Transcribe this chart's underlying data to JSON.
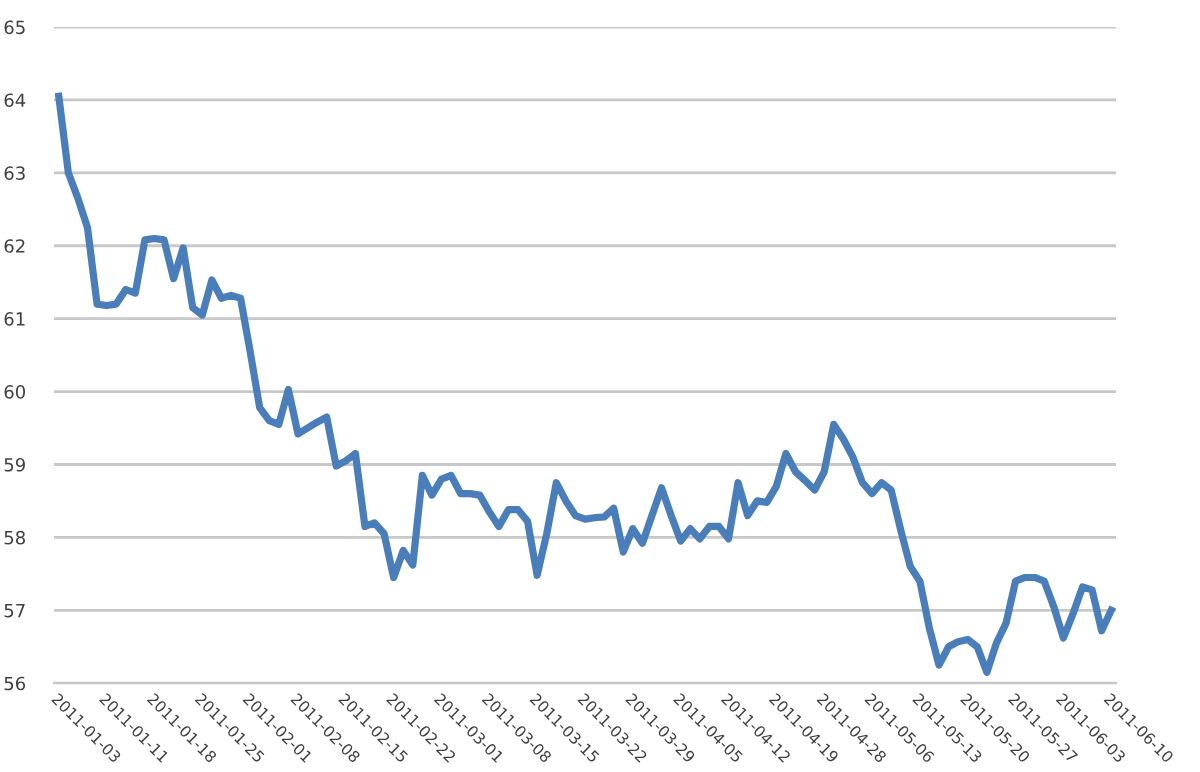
{
  "chart_data": {
    "type": "line",
    "categories": [
      "2011-01-03",
      null,
      null,
      null,
      null,
      "2011-01-11",
      null,
      null,
      null,
      null,
      "2011-01-18",
      null,
      null,
      null,
      null,
      "2011-01-25",
      null,
      null,
      null,
      null,
      "2011-02-01",
      null,
      null,
      null,
      null,
      "2011-02-08",
      null,
      null,
      null,
      null,
      "2011-02-15",
      null,
      null,
      null,
      null,
      "2011-02-22",
      null,
      null,
      null,
      null,
      "2011-03-01",
      null,
      null,
      null,
      null,
      "2011-03-08",
      null,
      null,
      null,
      null,
      "2011-03-15",
      null,
      null,
      null,
      null,
      "2011-03-22",
      null,
      null,
      null,
      null,
      "2011-03-29",
      null,
      null,
      null,
      null,
      "2011-04-05",
      null,
      null,
      null,
      null,
      "2011-04-12",
      null,
      null,
      null,
      null,
      "2011-04-19",
      null,
      null,
      null,
      null,
      "2011-04-28",
      null,
      null,
      null,
      null,
      "2011-05-06",
      null,
      null,
      null,
      null,
      "2011-05-13",
      null,
      null,
      null,
      null,
      "2011-05-20",
      null,
      null,
      null,
      null,
      "2011-05-27",
      null,
      null,
      null,
      null,
      "2011-06-03",
      null,
      null,
      null,
      null,
      "2011-06-10"
    ],
    "series": [
      {
        "color": "#4a7ebb",
        "values": [
          64.05,
          63.0,
          62.65,
          62.25,
          61.2,
          61.18,
          61.2,
          61.4,
          61.35,
          62.08,
          62.1,
          62.08,
          61.55,
          61.97,
          61.15,
          61.05,
          61.53,
          61.28,
          61.32,
          61.28,
          60.55,
          59.78,
          59.6,
          59.55,
          60.03,
          59.42,
          59.5,
          59.58,
          59.65,
          58.98,
          59.05,
          59.15,
          58.15,
          58.2,
          58.05,
          57.45,
          57.82,
          57.62,
          58.85,
          58.58,
          58.8,
          58.85,
          58.6,
          58.6,
          58.58,
          58.35,
          58.15,
          58.38,
          58.38,
          58.22,
          57.48,
          58.05,
          58.75,
          58.5,
          58.3,
          58.25,
          58.27,
          58.28,
          58.4,
          57.8,
          58.12,
          57.92,
          58.3,
          58.68,
          58.3,
          57.95,
          58.12,
          57.98,
          58.15,
          58.15,
          57.98,
          58.75,
          58.3,
          58.5,
          58.48,
          58.7,
          59.15,
          58.9,
          58.78,
          58.65,
          58.9,
          59.55,
          59.35,
          59.1,
          58.75,
          58.6,
          58.75,
          58.65,
          58.1,
          57.6,
          57.4,
          56.75,
          56.25,
          56.5,
          56.57,
          56.6,
          56.5,
          56.15,
          56.55,
          56.82,
          57.4,
          57.45,
          57.45,
          57.4,
          57.05,
          56.62,
          56.95,
          57.32,
          57.28,
          56.72,
          57.0
        ]
      }
    ],
    "ylim": [
      56,
      65
    ],
    "yticks": [
      56,
      57,
      58,
      59,
      60,
      61,
      62,
      63,
      64,
      65
    ],
    "grid": "y",
    "legend": false,
    "marker": "none",
    "line_style": "solid"
  }
}
